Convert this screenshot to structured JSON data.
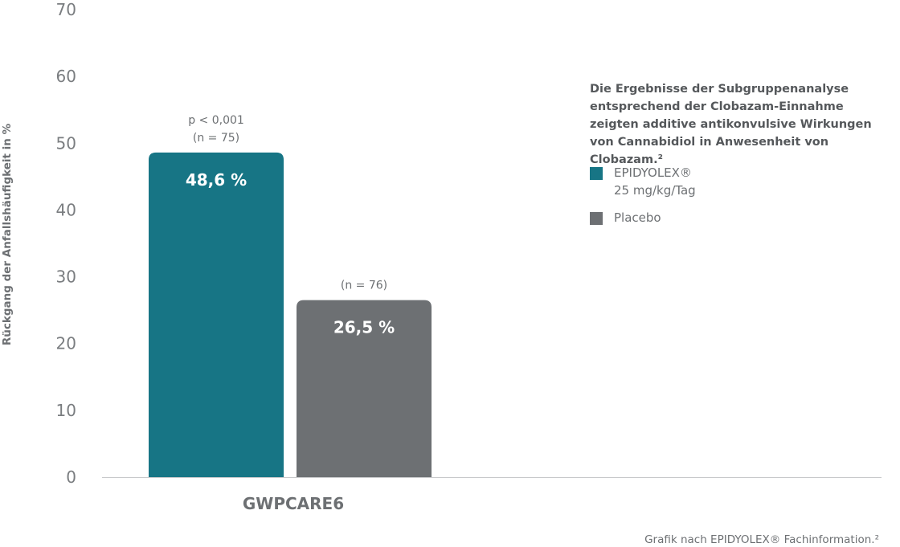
{
  "chart_data": {
    "type": "bar",
    "ylabel": "Rückgang der Anfallshäufigkeit in %",
    "ylim": [
      0,
      70
    ],
    "yticks": [
      "0",
      "10",
      "20",
      "30",
      "40",
      "50",
      "60",
      "70"
    ],
    "categories": [
      "GWPCARE6"
    ],
    "series": [
      {
        "name": "EPIDYOLEX® 25 mg/kg/Tag",
        "values": [
          48.6
        ],
        "value_label": "48,6 %",
        "annotation": [
          "p < 0,001",
          "(n = 75)"
        ],
        "color": "#177585"
      },
      {
        "name": "Placebo",
        "values": [
          26.5
        ],
        "value_label": "26,5 %",
        "annotation": [
          "(n = 76)"
        ],
        "color": "#6d7073"
      }
    ],
    "grid": false,
    "legend_position": "right"
  },
  "note": "Die Ergebnisse der Subgruppenanalyse entsprechend der Clobazam-Einnahme zeigten additive antikonvulsive Wirkungen von Cannabidiol in Anwesenheit von Clobazam.²",
  "legend": [
    {
      "label": "EPIDYOLEX®",
      "sublabel": "25 mg/kg/Tag",
      "color": "#177585"
    },
    {
      "label": "Placebo",
      "sublabel": "",
      "color": "#6d7073"
    }
  ],
  "source": "Grafik nach EPIDYOLEX® Fachinformation.²"
}
